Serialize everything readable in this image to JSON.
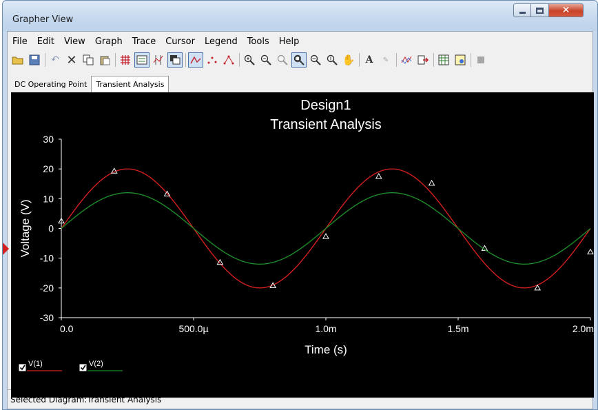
{
  "window": {
    "title": "Grapher View"
  },
  "menu": [
    "File",
    "Edit",
    "View",
    "Graph",
    "Trace",
    "Cursor",
    "Legend",
    "Tools",
    "Help"
  ],
  "tabs": [
    {
      "label": "DC Operating Point",
      "active": false
    },
    {
      "label": "Transient Analysis",
      "active": true
    }
  ],
  "chart_data": {
    "type": "line",
    "title": "Design1",
    "subtitle": "Transient Analysis",
    "xlabel": "Time (s)",
    "ylabel": "Voltage (V)",
    "xlim": [
      0,
      0.002
    ],
    "ylim": [
      -30,
      30
    ],
    "x_ticks": [
      0,
      0.0005,
      0.001,
      0.0015,
      0.002
    ],
    "x_tick_labels": [
      "0.0",
      "500.0µ",
      "1.0m",
      "1.5m",
      "2.0m"
    ],
    "y_ticks": [
      30,
      20,
      10,
      0,
      -10,
      -20,
      -30
    ],
    "y_tick_labels": [
      "30",
      "20",
      "10",
      "0",
      "-10",
      "-20",
      "-30"
    ],
    "background": "#000000",
    "grid": false,
    "legend_placement": "bottom-left",
    "series": [
      {
        "name": "V(1)",
        "color": "#d21f1f",
        "amplitude": 20,
        "frequency_hz": 1000,
        "markers": [
          [
            0.0,
            2.5
          ],
          [
            0.0002,
            19.3
          ],
          [
            0.0004,
            11.6
          ],
          [
            0.0006,
            -11.4
          ],
          [
            0.0008,
            -19.2
          ],
          [
            0.001,
            -2.7
          ],
          [
            0.0012,
            17.5
          ],
          [
            0.0014,
            15.2
          ],
          [
            0.0016,
            -6.7
          ],
          [
            0.0018,
            -20.0
          ],
          [
            0.002,
            -7.9
          ]
        ]
      },
      {
        "name": "V(2)",
        "color": "#1e8a2a",
        "amplitude": 12,
        "frequency_hz": 1000,
        "markers": []
      }
    ]
  },
  "status": "Selected Diagram:Transient Analysis"
}
